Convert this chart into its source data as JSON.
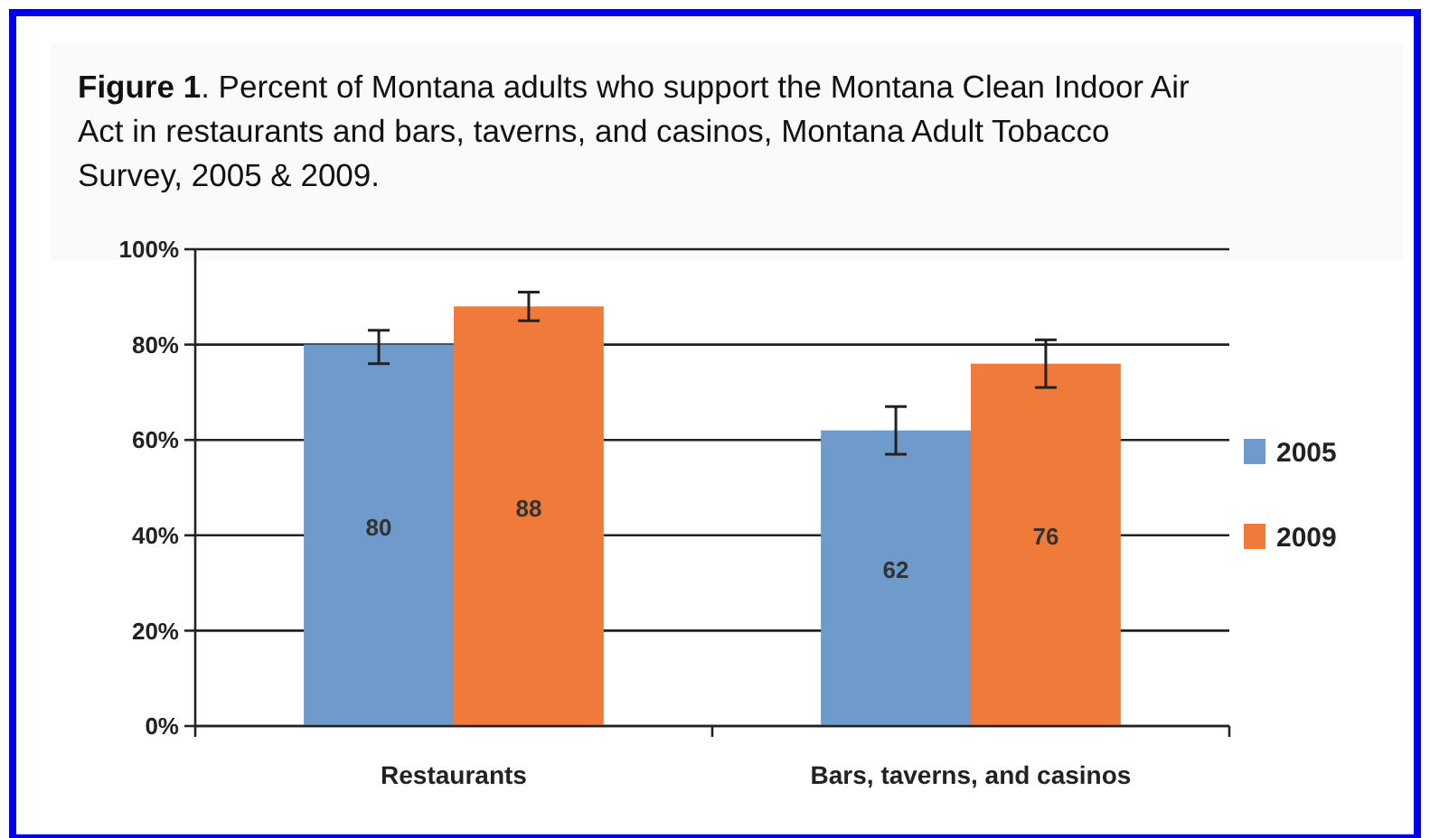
{
  "chart_data": {
    "type": "bar",
    "title": "Figure 1. Percent of Montana adults who support the Montana Clean Indoor Air Act in restaurants and bars, taverns, and casinos, Montana Adult Tobacco Survey, 2005 & 2009.",
    "categories": [
      "Restaurants",
      "Bars, taverns, and casinos"
    ],
    "series": [
      {
        "name": "2005",
        "color": "#6f9bcc",
        "values": [
          80,
          62
        ],
        "errors": [
          [
            76,
            83
          ],
          [
            57,
            67
          ]
        ]
      },
      {
        "name": "2009",
        "color": "#f07a3a",
        "values": [
          88,
          76
        ],
        "errors": [
          [
            85,
            91
          ],
          [
            71,
            81
          ]
        ]
      }
    ],
    "ylim": [
      0,
      100
    ],
    "yticks": [
      {
        "value": 0,
        "label": "0%"
      },
      {
        "value": 20,
        "label": "20%"
      },
      {
        "value": 40,
        "label": "40%"
      },
      {
        "value": 60,
        "label": "60%"
      },
      {
        "value": 80,
        "label": "80%"
      },
      {
        "value": 100,
        "label": "100%"
      }
    ],
    "grid": "y",
    "legend": "right",
    "data_labels": true
  }
}
